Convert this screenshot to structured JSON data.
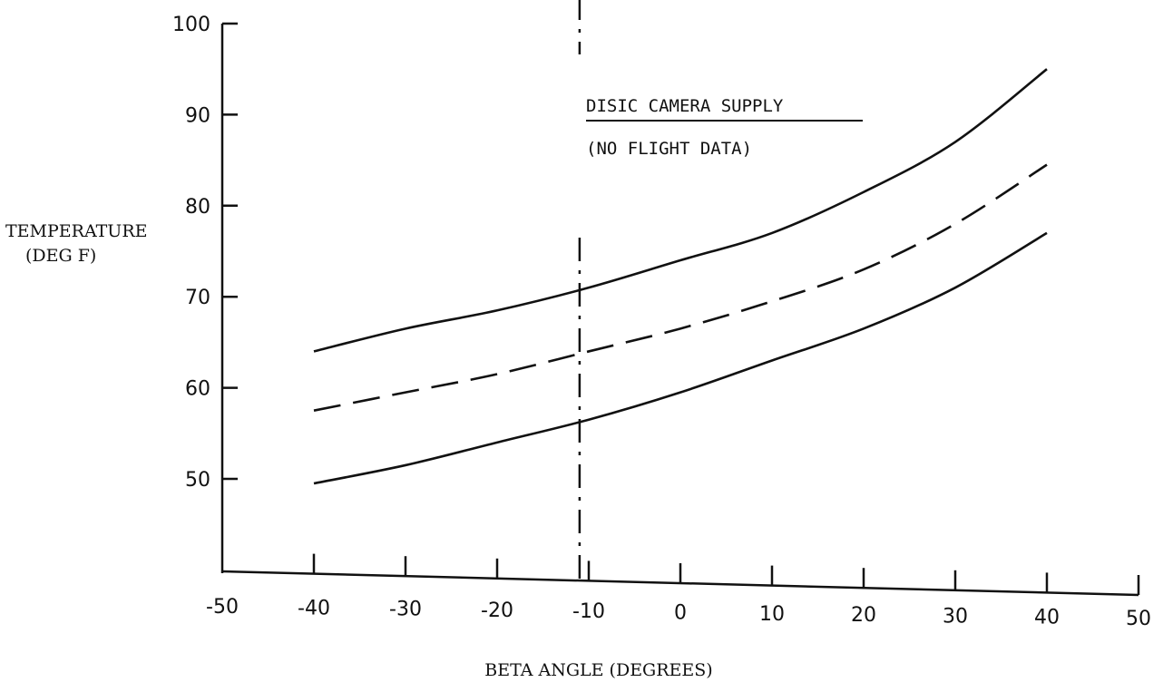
{
  "chart_data": {
    "type": "line",
    "xlabel": "BETA ANGLE (DEGREES)",
    "ylabel": [
      "TEMPERATURE",
      "(DEG F)"
    ],
    "xlim": [
      -50,
      50
    ],
    "ylim": [
      40,
      100
    ],
    "x_ticks": [
      -50,
      -40,
      -30,
      -20,
      -10,
      0,
      10,
      20,
      30,
      40,
      50
    ],
    "x_tick_labels": [
      "-50",
      "-40",
      "-30",
      "-20",
      "-10",
      "0",
      "10",
      "20",
      "30",
      "40",
      "50"
    ],
    "y_ticks": [
      50,
      60,
      70,
      80,
      90,
      100
    ],
    "y_tick_labels": [
      "50",
      "60",
      "70",
      "80",
      "90",
      "100"
    ],
    "grid": false,
    "legend": "none",
    "annotation": {
      "title": "DISIC CAMERA SUPPLY",
      "subtitle": "(NO FLIGHT DATA)"
    },
    "reference_line": {
      "x": -11,
      "style": "dash-dot"
    },
    "series": [
      {
        "style": "solid",
        "x": [
          -40,
          -30,
          -20,
          -10,
          0,
          10,
          20,
          30,
          40
        ],
        "y": [
          64,
          66.5,
          68.5,
          71,
          74,
          77,
          81.5,
          87,
          95
        ]
      },
      {
        "style": "dashed",
        "x": [
          -40,
          -30,
          -20,
          -10,
          0,
          10,
          20,
          30,
          40
        ],
        "y": [
          57.5,
          59.5,
          61.5,
          64,
          66.5,
          69.5,
          73,
          78,
          84.5
        ]
      },
      {
        "style": "solid",
        "x": [
          -40,
          -30,
          -20,
          -10,
          0,
          10,
          20,
          30,
          40
        ],
        "y": [
          49.5,
          51.5,
          54,
          56.5,
          59.5,
          63,
          66.5,
          71,
          77
        ]
      }
    ]
  }
}
